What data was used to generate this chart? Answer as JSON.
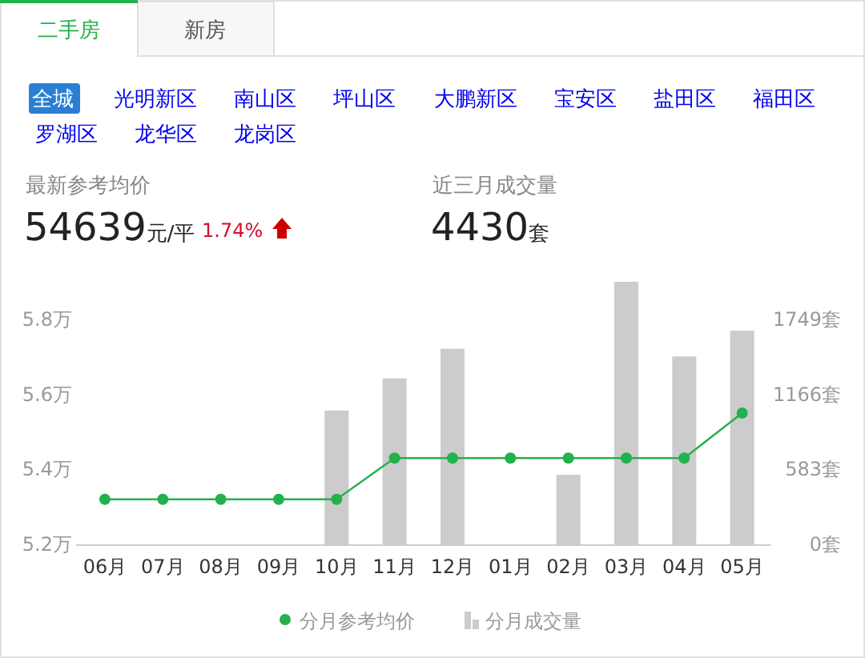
{
  "chart_data": {
    "type": "bar",
    "categories": [
      "06月",
      "07月",
      "08月",
      "09月",
      "10月",
      "11月",
      "12月",
      "01月",
      "02月",
      "03月",
      "04月",
      "05月"
    ],
    "series": [
      {
        "name": "分月成交量",
        "axis": "y2",
        "color": "#cccccc",
        "values": [
          0,
          0,
          0,
          0,
          1040,
          1290,
          1520,
          0,
          540,
          2040,
          1460,
          1660
        ]
      },
      {
        "name": "分月参考均价",
        "type": "line",
        "color": "#22b14c",
        "values": [
          5.32,
          5.32,
          5.32,
          5.32,
          5.32,
          5.43,
          5.43,
          5.43,
          5.43,
          5.43,
          5.43,
          5.55
        ]
      }
    ],
    "ylim": [
      5.2,
      5.9
    ],
    "yticks": [
      {
        "value": 5.2,
        "label": "5.2万"
      },
      {
        "value": 5.4,
        "label": "5.4万"
      },
      {
        "value": 5.6,
        "label": "5.6万"
      },
      {
        "value": 5.8,
        "label": "5.8万"
      }
    ],
    "y2lim": [
      0,
      2040
    ],
    "y2ticks": [
      {
        "value": 0,
        "label": "0套"
      },
      {
        "value": 583,
        "label": "583套"
      },
      {
        "value": 1166,
        "label": "1166套"
      },
      {
        "value": 1749,
        "label": "1749套"
      }
    ],
    "marker": "circle",
    "line_style": "solid",
    "grid": false,
    "legend": "bottom",
    "annotations": [
      "二手房",
      "新房",
      "全城",
      "光明新区",
      "南山区",
      "坪山区",
      "大鹏新区",
      "宝安区",
      "盐田区",
      "福田区",
      "罗湖区",
      "龙华区",
      "龙岗区",
      "最新参考均价",
      "54639元/平",
      "1.74%",
      "近三月成交量",
      "4430套"
    ]
  }
}
